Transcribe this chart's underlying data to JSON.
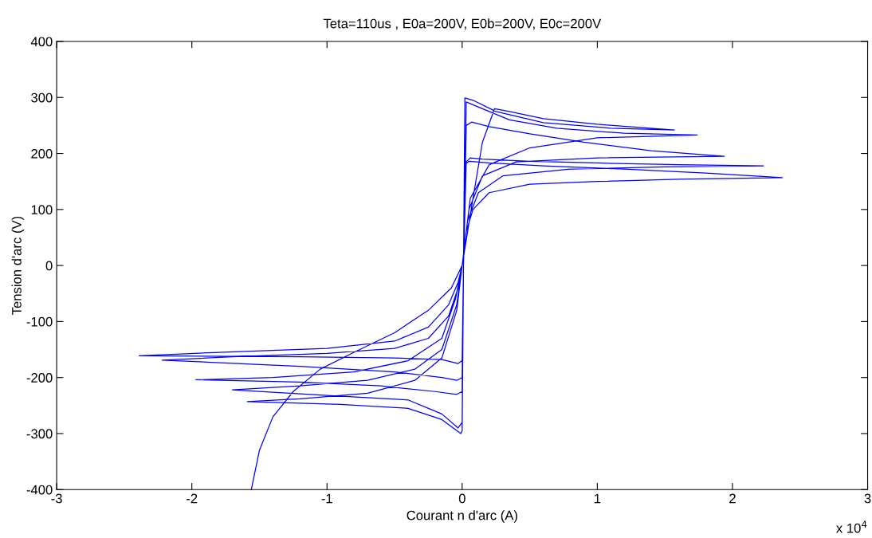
{
  "chart_data": {
    "type": "line",
    "title": "Teta=110us , E0a=200V, E0b=200V, E0c=200V",
    "xlabel": "Courant n d'arc (A)",
    "ylabel": "Tension d'arc (V)",
    "annotations": [
      "x 10$^{4}$"
    ],
    "xlim": [
      -3,
      3
    ],
    "xticks": [
      -3,
      -2,
      -1,
      0,
      1,
      2,
      3
    ],
    "ylim": [
      -400,
      400
    ],
    "yticks": [
      -400,
      -300,
      -200,
      -100,
      0,
      100,
      200,
      300,
      400
    ],
    "grid": false,
    "marker": "none",
    "line_style": "solid",
    "series": [
      {
        "color": "#0000ff",
        "x": [
          -1.56,
          -1.5,
          -1.4,
          -1.25,
          -1.05,
          -0.8,
          -0.5,
          -0.25,
          -0.08,
          0,
          0.08,
          0.15,
          0.24,
          0.35,
          0.6,
          1.0,
          1.57,
          1.1,
          0.6,
          0.25,
          0.08,
          0.02,
          0.01,
          0,
          -0.01,
          -0.15,
          -0.4,
          -0.9,
          -1.59,
          -1.2,
          -0.7,
          -0.35,
          -0.15,
          -0.04,
          0,
          0.03,
          0.08,
          0.2,
          0.5,
          1.0,
          1.6,
          2.37,
          1.8,
          1.2,
          0.6,
          0.2,
          0.05,
          0.02,
          0.01,
          0,
          -0.03,
          -0.15,
          -0.5,
          -1.2,
          -2.39,
          -1.8,
          -1.0,
          -0.5,
          -0.25,
          -0.1,
          -0.03,
          0,
          0.04,
          0.12,
          0.3,
          0.8,
          1.5,
          2.23,
          1.6,
          1.0,
          0.5,
          0.15,
          0.06,
          0.03,
          0.01,
          0,
          -0.04,
          -0.15,
          -0.5,
          -1.2,
          -2.22,
          -1.7,
          -1.0,
          -0.5,
          -0.25,
          -0.1,
          -0.03,
          0,
          0.05,
          0.15,
          0.4,
          1.0,
          1.94,
          1.4,
          0.9,
          0.5,
          0.2,
          0.07,
          0.03,
          0.01,
          0,
          -0.04,
          -0.2,
          -0.6,
          -1.2,
          -1.97,
          -1.4,
          -0.8,
          -0.4,
          -0.15,
          -0.05,
          0,
          0.06,
          0.2,
          0.5,
          1.0,
          1.74,
          1.2,
          0.7,
          0.35,
          0.1,
          0.03,
          0.01,
          0,
          -0.03,
          -0.15,
          -0.4,
          -1.0,
          -1.7,
          -1.2,
          -0.7,
          -0.35,
          -0.15,
          -0.04,
          0
        ],
        "values": [
          -400,
          -330,
          -270,
          -225,
          -185,
          -155,
          -120,
          -80,
          -40,
          0,
          120,
          220,
          280,
          275,
          262,
          252,
          242,
          245,
          255,
          275,
          295,
          299,
          0,
          -295,
          -300,
          -275,
          -255,
          -248,
          -243,
          -238,
          -228,
          -205,
          -165,
          -80,
          0,
          60,
          100,
          130,
          145,
          150,
          154,
          157,
          165,
          172,
          178,
          183,
          186,
          180,
          0,
          -170,
          -175,
          -168,
          -165,
          -163,
          -161,
          -155,
          -148,
          -135,
          -110,
          -70,
          -30,
          0,
          80,
          130,
          160,
          172,
          176,
          178,
          180,
          183,
          186,
          190,
          192,
          185,
          0,
          -200,
          -205,
          -200,
          -190,
          -180,
          -169,
          -163,
          -157,
          -148,
          -130,
          -90,
          -40,
          0,
          100,
          160,
          185,
          192,
          195,
          205,
          220,
          235,
          248,
          256,
          250,
          0,
          -225,
          -230,
          -225,
          -215,
          -208,
          -204,
          -200,
          -190,
          -170,
          -130,
          -60,
          0,
          120,
          180,
          210,
          228,
          233,
          236,
          245,
          260,
          285,
          292,
          0,
          -280,
          -290,
          -265,
          -240,
          -232,
          -222,
          -215,
          -205,
          -185,
          -150,
          -70,
          0
        ]
      }
    ]
  }
}
